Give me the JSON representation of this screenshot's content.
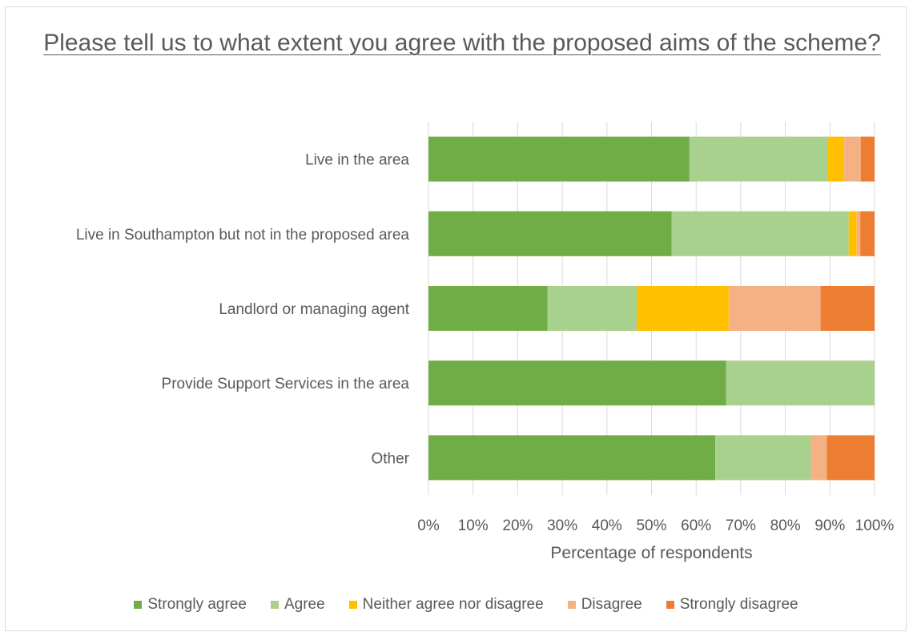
{
  "chart_data": {
    "type": "bar",
    "orientation": "horizontal",
    "stacked": true,
    "title": "Please tell us to what extent you agree with the proposed aims of the scheme?",
    "xlabel": "Percentage of respondents",
    "ylabel": "",
    "xlim": [
      0,
      100
    ],
    "x_ticks": [
      "0%",
      "10%",
      "20%",
      "30%",
      "40%",
      "50%",
      "60%",
      "70%",
      "80%",
      "90%",
      "100%"
    ],
    "grid": true,
    "legend_position": "bottom",
    "categories": [
      "Live in the area",
      "Live in Southampton but not in the proposed area",
      "Landlord or managing agent",
      "Provide Support Services in the area",
      "Other"
    ],
    "series": [
      {
        "name": "Strongly agree",
        "color": "#70ad47",
        "values": [
          58.5,
          54.5,
          26.7,
          66.7,
          64.3
        ]
      },
      {
        "name": "Agree",
        "color": "#a9d18e",
        "values": [
          31.0,
          39.7,
          20.0,
          33.3,
          21.4
        ]
      },
      {
        "name": "Neither agree nor disagree",
        "color": "#ffc000",
        "values": [
          3.7,
          1.8,
          20.6,
          0,
          0
        ]
      },
      {
        "name": "Disagree",
        "color": "#f4b183",
        "values": [
          3.7,
          0.8,
          20.6,
          0,
          3.6
        ]
      },
      {
        "name": "Strongly disagree",
        "color": "#ed7d31",
        "values": [
          3.1,
          3.2,
          12.1,
          0,
          10.7
        ]
      }
    ]
  }
}
